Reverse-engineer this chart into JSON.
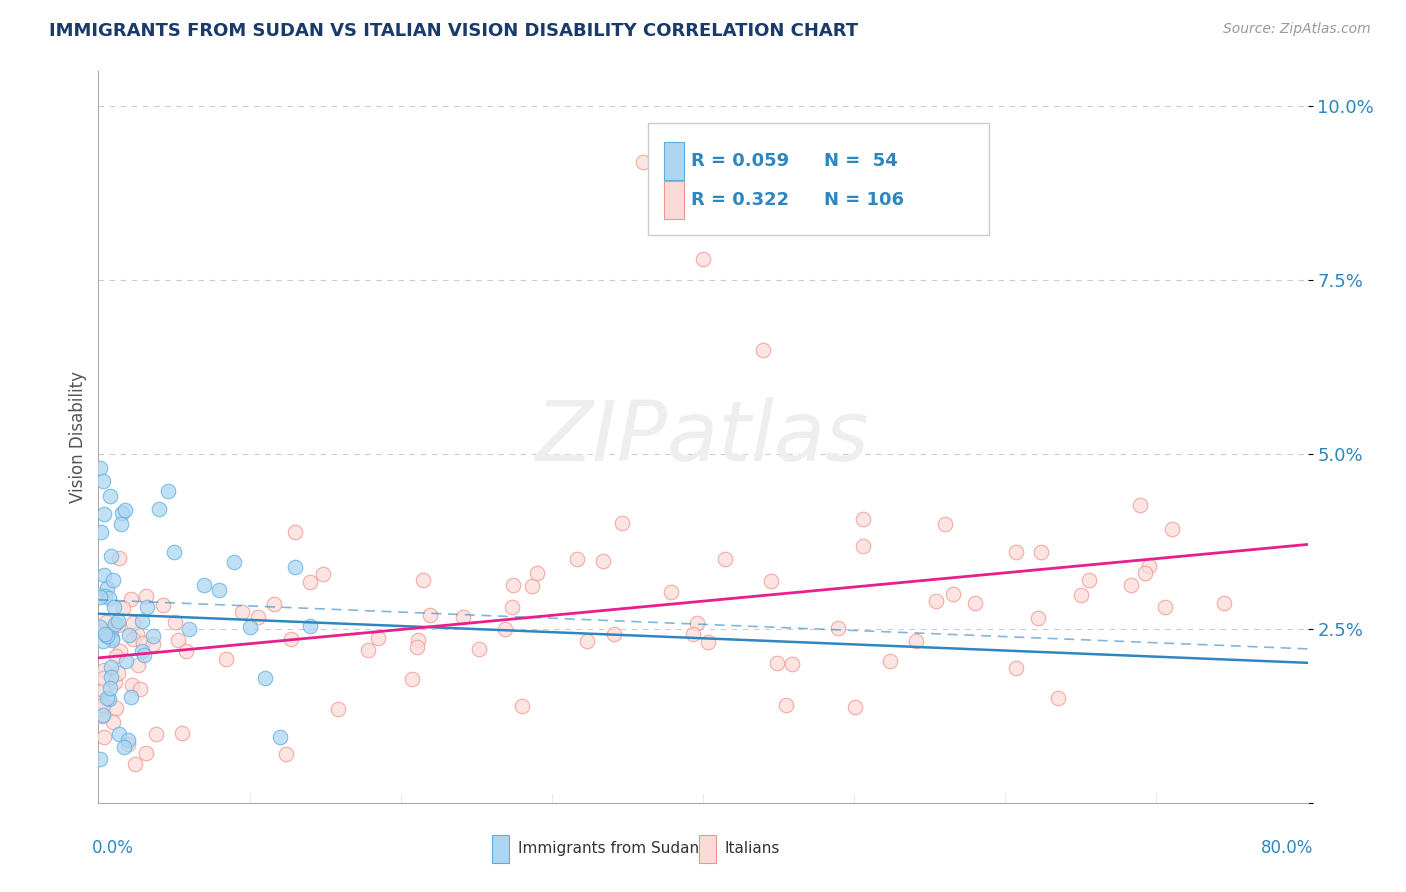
{
  "title": "IMMIGRANTS FROM SUDAN VS ITALIAN VISION DISABILITY CORRELATION CHART",
  "source": "Source: ZipAtlas.com",
  "ylabel": "Vision Disability",
  "xlim": [
    0.0,
    0.8
  ],
  "ylim": [
    0.0,
    0.105
  ],
  "yticks": [
    0.0,
    0.025,
    0.05,
    0.075,
    0.1
  ],
  "ytick_labels": [
    "",
    "2.5%",
    "5.0%",
    "7.5%",
    "10.0%"
  ],
  "color_blue_fill": "#AED6F1",
  "color_blue_edge": "#5DADE2",
  "color_blue_line": "#2E86C1",
  "color_pink_fill": "#FADBD8",
  "color_pink_edge": "#F1948A",
  "color_pink_line": "#E91E8C",
  "color_legend_text": "#2E86C1",
  "title_color": "#1A3A6B",
  "background_color": "#FFFFFF",
  "grid_color": "#CCCCCC",
  "legend_r1": "R = 0.059",
  "legend_n1": "N =  54",
  "legend_r2": "R = 0.322",
  "legend_n2": "N = 106"
}
